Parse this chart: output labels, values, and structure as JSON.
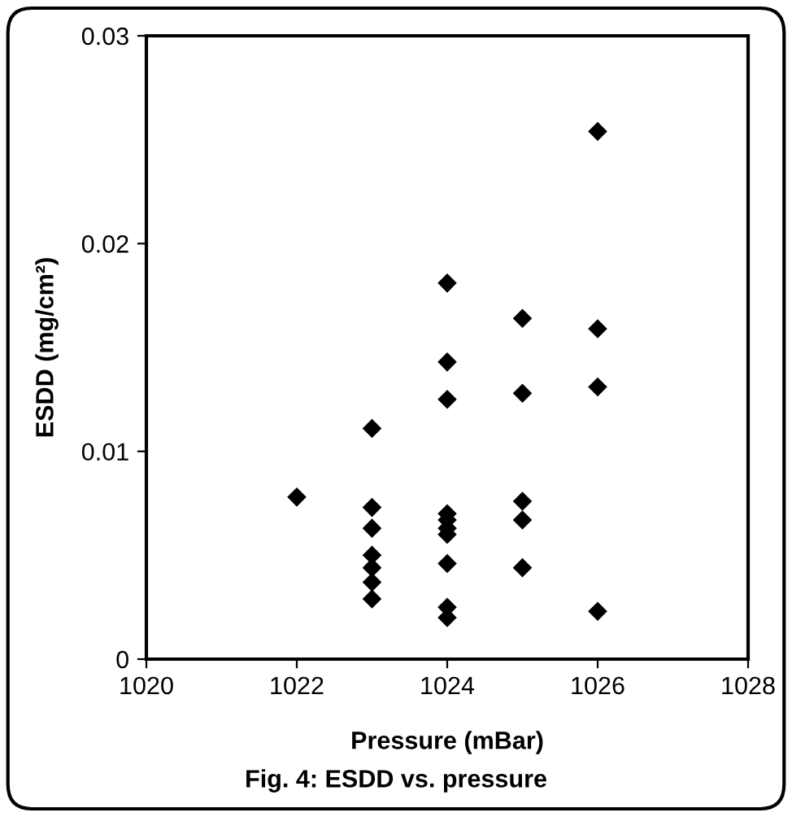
{
  "chart_data": {
    "type": "scatter",
    "xlabel": "Pressure (mBar)",
    "ylabel": "ESDD (mg/cm²)",
    "annotations": [
      "Fig. 4: ESDD vs. pressure"
    ],
    "x": [
      1022,
      1023,
      1023,
      1023,
      1023,
      1023,
      1023,
      1023,
      1024,
      1024,
      1024,
      1024,
      1024,
      1024,
      1024,
      1024,
      1024,
      1024,
      1025,
      1025,
      1025,
      1025,
      1025,
      1026,
      1026,
      1026,
      1026
    ],
    "values": [
      0.0078,
      0.0111,
      0.0073,
      0.0063,
      0.005,
      0.0044,
      0.0037,
      0.0029,
      0.0181,
      0.0143,
      0.0125,
      0.007,
      0.0067,
      0.0063,
      0.006,
      0.0046,
      0.0025,
      0.002,
      0.0164,
      0.0128,
      0.0076,
      0.0067,
      0.0044,
      0.0254,
      0.0159,
      0.0131,
      0.0023
    ],
    "color": "#000000",
    "marker": "diamond",
    "xlim": [
      1020,
      1028
    ],
    "xticks": [
      1020,
      1022,
      1024,
      1026,
      1028
    ],
    "ylim": [
      0,
      0.03
    ],
    "yticks": [
      {
        "value": 0,
        "label": "0"
      },
      0.01,
      0.02,
      0.03
    ],
    "grid": false
  }
}
